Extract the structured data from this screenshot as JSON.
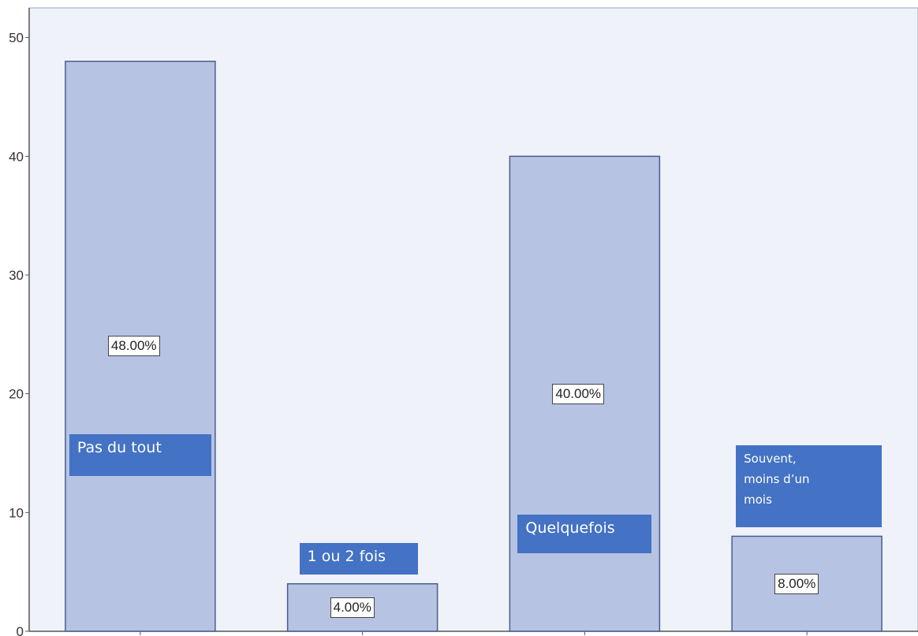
{
  "chart_data": {
    "type": "bar",
    "categories": [
      "Pas du tout",
      "1 ou 2 fois",
      "Quelquefois",
      "Souvent, moins d’un mois"
    ],
    "values": [
      48,
      4,
      40,
      8
    ],
    "value_labels": [
      "48.00%",
      "4.00%",
      "40.00%",
      "8.00%"
    ],
    "category_label_lines": [
      [
        "Pas du tout"
      ],
      [
        "1 ou 2 fois"
      ],
      [
        "Quelquefois"
      ],
      [
        "Souvent,",
        "moins d’un",
        "mois"
      ]
    ],
    "y_ticks": [
      0,
      10,
      20,
      30,
      40,
      50
    ],
    "ylim": [
      0,
      52.5
    ],
    "title": "",
    "xlabel": "",
    "ylabel": "",
    "grid": false,
    "colors": {
      "plot_background": "#eff2f9",
      "bar_fill": "#b6c3e3",
      "bar_stroke": "#4a5d8f",
      "label_box": "#4472c4",
      "axis": "#555555"
    }
  }
}
